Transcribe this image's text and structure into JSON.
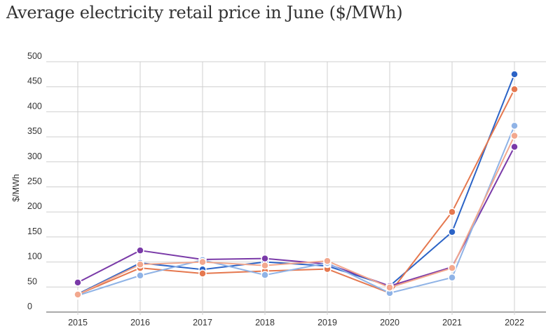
{
  "chart_data": {
    "type": "line",
    "title": "Average electricity retail price in June ($/MWh)",
    "xlabel": "",
    "ylabel": "$/MWh",
    "ylim": [
      0,
      500
    ],
    "yticks": [
      "0",
      "50",
      "100",
      "150",
      "200",
      "250",
      "300",
      "350",
      "400",
      "450",
      "500"
    ],
    "x": [
      "2015",
      "2016",
      "2017",
      "2018",
      "2019",
      "2020",
      "2021",
      "2022"
    ],
    "grid": true,
    "legend": "none",
    "series": [
      {
        "color": "#2b63c6",
        "values": [
          36,
          98,
          85,
          100,
          92,
          52,
          160,
          475
        ]
      },
      {
        "color": "#e5784f",
        "values": [
          35,
          88,
          77,
          82,
          86,
          38,
          200,
          445
        ]
      },
      {
        "color": "#7a3aa8",
        "values": [
          59,
          123,
          105,
          107,
          96,
          52,
          90,
          330
        ]
      },
      {
        "color": "#8fb3e6",
        "values": [
          33,
          73,
          104,
          74,
          98,
          38,
          69,
          372
        ]
      },
      {
        "color": "#f2a88e",
        "values": [
          35,
          95,
          100,
          93,
          102,
          49,
          88,
          352
        ]
      }
    ]
  }
}
